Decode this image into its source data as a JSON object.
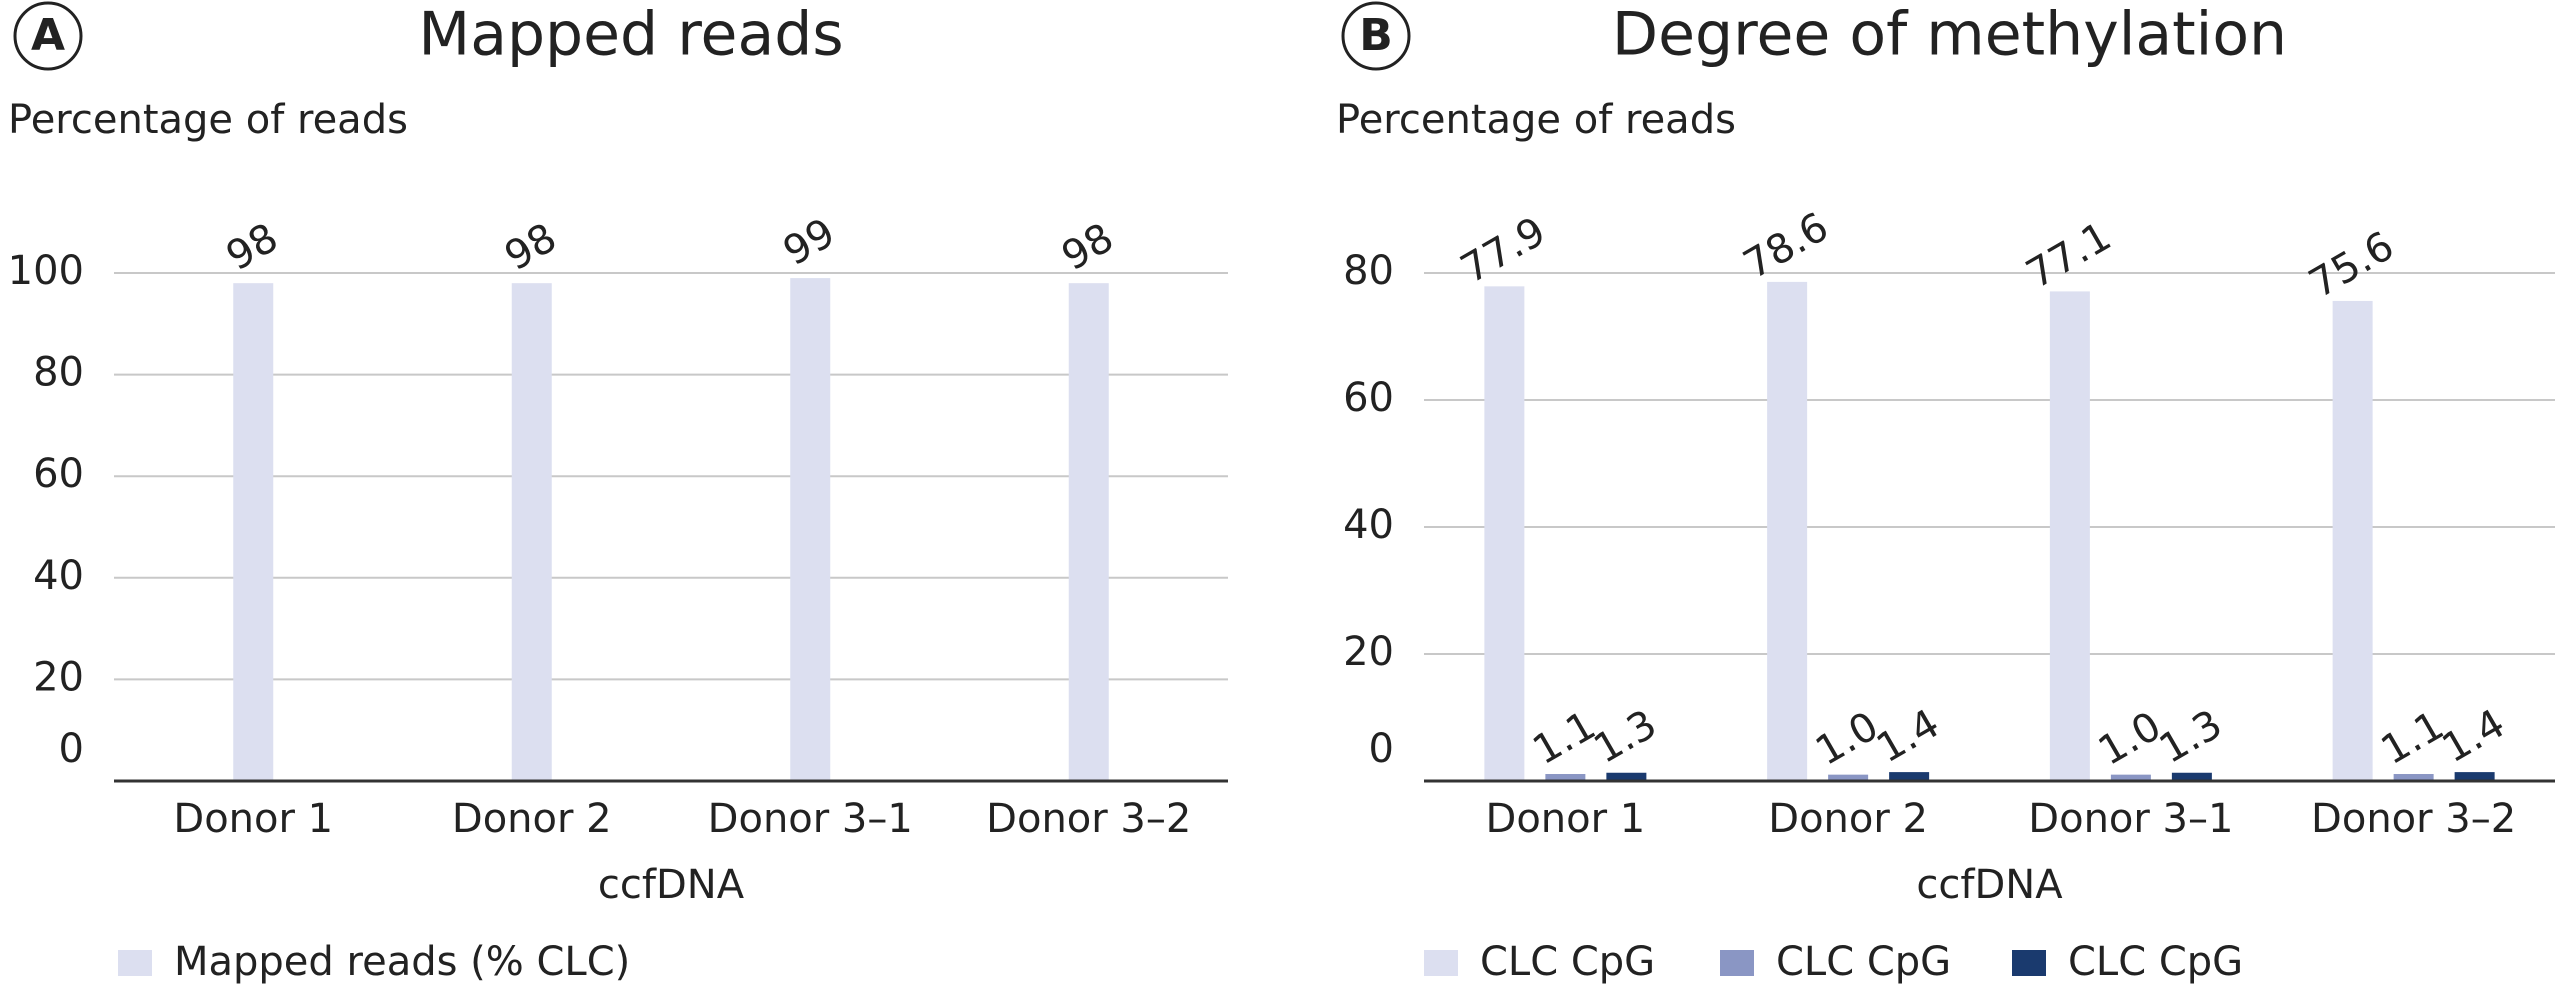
{
  "chart_data": [
    {
      "type": "bar",
      "panel": "A",
      "title": "Mapped reads",
      "y_label": "Percentage of reads",
      "x_label": "ccfDNA",
      "categories": [
        "Donor 1",
        "Donor 2",
        "Donor 3–1",
        "Donor 3–2"
      ],
      "series": [
        {
          "name": "Mapped reads (% CLC)",
          "color": "#dcdff0",
          "values": [
            98,
            98,
            99,
            98
          ]
        }
      ],
      "ylim": [
        0,
        100
      ],
      "yticks": [
        0,
        20,
        40,
        60,
        80,
        100
      ],
      "grid": true
    },
    {
      "type": "bar",
      "panel": "B",
      "title": "Degree of methylation",
      "y_label": "Percentage of reads",
      "x_label": "ccfDNA",
      "categories": [
        "Donor 1",
        "Donor 2",
        "Donor 3–1",
        "Donor 3–2"
      ],
      "series": [
        {
          "name": "CLC CpG",
          "color": "#dcdff0",
          "values": [
            77.9,
            78.6,
            77.1,
            75.6
          ]
        },
        {
          "name": "CLC CpG",
          "color": "#8a96c4",
          "values": [
            1.1,
            1.0,
            1.0,
            1.1
          ],
          "value_labels": [
            "1.1",
            "1.0",
            "1.0",
            "1.1"
          ]
        },
        {
          "name": "CLC CpG",
          "color": "#1a3a6e",
          "values": [
            1.3,
            1.4,
            1.3,
            1.4
          ]
        }
      ],
      "ylim": [
        0,
        80
      ],
      "yticks": [
        0,
        20,
        40,
        60,
        80
      ],
      "grid": true
    }
  ]
}
